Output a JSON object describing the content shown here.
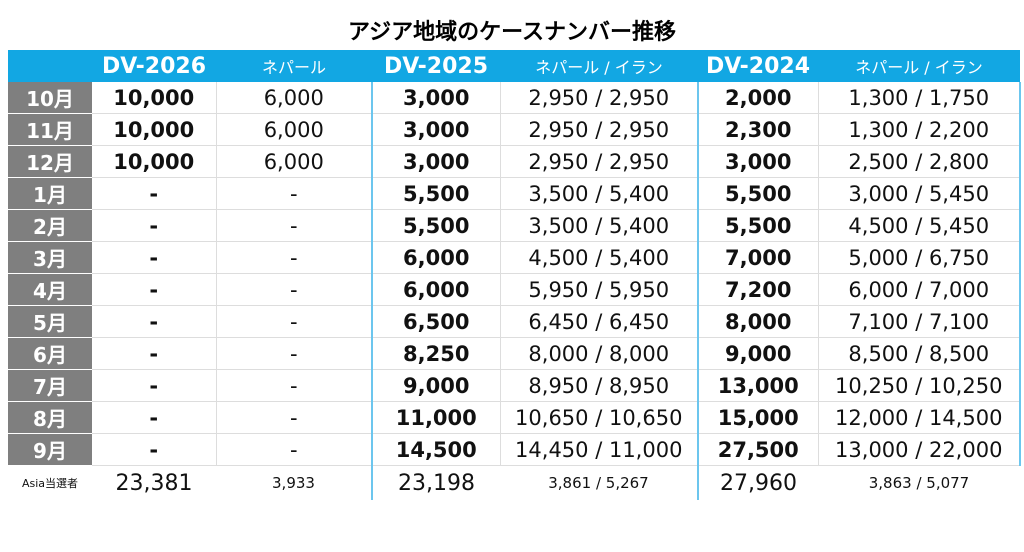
{
  "title": "アジア地域のケースナンバー推移",
  "header": {
    "dv2026": "DV-2026",
    "dv2026_sub": "ネパール",
    "dv2025": "DV-2025",
    "dv2025_sub": "ネパール / イラン",
    "dv2024": "DV-2024",
    "dv2024_sub": "ネパール / イラン"
  },
  "rows": [
    [
      "10月",
      "10,000",
      "6,000",
      "3,000",
      "2,950 / 2,950",
      "2,000",
      "1,300 / 1,750"
    ],
    [
      "11月",
      "10,000",
      "6,000",
      "3,000",
      "2,950 / 2,950",
      "2,300",
      "1,300 / 2,200"
    ],
    [
      "12月",
      "10,000",
      "6,000",
      "3,000",
      "2,950 / 2,950",
      "3,000",
      "2,500 / 2,800"
    ],
    [
      "1月",
      "-",
      "-",
      "5,500",
      "3,500 / 5,400",
      "5,500",
      "3,000 / 5,450"
    ],
    [
      "2月",
      "-",
      "-",
      "5,500",
      "3,500 / 5,400",
      "5,500",
      "4,500 / 5,450"
    ],
    [
      "3月",
      "-",
      "-",
      "6,000",
      "4,500 / 5,400",
      "7,000",
      "5,000 / 6,750"
    ],
    [
      "4月",
      "-",
      "-",
      "6,000",
      "5,950 / 5,950",
      "7,200",
      "6,000 / 7,000"
    ],
    [
      "5月",
      "-",
      "-",
      "6,500",
      "6,450 / 6,450",
      "8,000",
      "7,100 / 7,100"
    ],
    [
      "6月",
      "-",
      "-",
      "8,250",
      "8,000 / 8,000",
      "9,000",
      "8,500 / 8,500"
    ],
    [
      "7月",
      "-",
      "-",
      "9,000",
      "8,950 / 8,950",
      "13,000",
      "10,250 / 10,250"
    ],
    [
      "8月",
      "-",
      "-",
      "11,000",
      "10,650 / 10,650",
      "15,000",
      "12,000 / 14,500"
    ],
    [
      "9月",
      "-",
      "-",
      "14,500",
      "14,450 / 11,000",
      "27,500",
      "13,000 / 22,000"
    ]
  ],
  "total": [
    "Asia当選者",
    "23,381",
    "3,933",
    "23,198",
    "3,861 / 5,267",
    "27,960",
    "3,863 / 5,077"
  ]
}
